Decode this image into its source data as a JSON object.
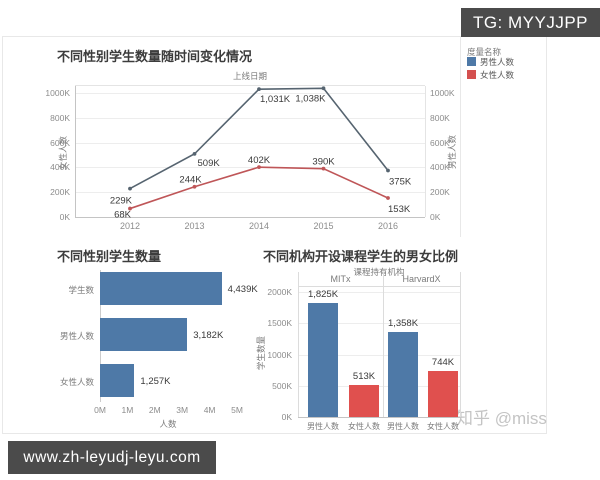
{
  "overlays": {
    "tg_badge": "TG: MYYJJPP",
    "url_badge": "www.zh-leyudj-leyu.com",
    "watermark": "知乎 @miss"
  },
  "legend": {
    "title": "度量名称",
    "items": [
      {
        "label": "男性人数",
        "color": "#4e79a7"
      },
      {
        "label": "女性人数",
        "color": "#d4504f"
      }
    ]
  },
  "chart_data": [
    {
      "type": "line",
      "title": "不同性别学生数量随时间变化情况",
      "top_axis_title": "上线日期",
      "left_axis_label": "女性人数",
      "right_axis_label": "男性人数",
      "x_categories": [
        "2012",
        "2013",
        "2014",
        "2015",
        "2016"
      ],
      "y_ticks": [
        "0K",
        "200K",
        "400K",
        "600K",
        "800K",
        "1000K"
      ],
      "ylim_k": [
        0,
        1000
      ],
      "grid": true,
      "legend_position": "top-right",
      "series": [
        {
          "name": "男性人数",
          "color": "#566470",
          "values_k": [
            229,
            509,
            1031,
            1038,
            375
          ],
          "point_labels": [
            "229K",
            "509K",
            "1,031K",
            "1,038K",
            "375K"
          ]
        },
        {
          "name": "女性人数",
          "color": "#bf5658",
          "values_k": [
            68,
            244,
            402,
            390,
            153
          ],
          "point_labels": [
            "68K",
            "244K",
            "402K",
            "390K",
            "153K"
          ]
        }
      ]
    },
    {
      "type": "bar",
      "title": "不同性别学生数量",
      "orientation": "horizontal",
      "categories": [
        "学生数",
        "男性人数",
        "女性人数"
      ],
      "values_m": [
        4.439,
        3.182,
        1.257
      ],
      "bar_labels": [
        "4,439K",
        "3,182K",
        "1,257K"
      ],
      "x_ticks": [
        "0M",
        "1M",
        "2M",
        "3M",
        "4M",
        "5M"
      ],
      "xlim_m": [
        0,
        5
      ],
      "x_axis_label": "人数",
      "bar_color": "#4e79a7"
    },
    {
      "type": "bar",
      "title": "不同机构开设课程学生的男女比例",
      "orientation": "vertical-grouped",
      "top_axis_title": "课程持有机构",
      "y_axis_label": "学生数量",
      "y_ticks": [
        "0K",
        "500K",
        "1000K",
        "1500K",
        "2000K"
      ],
      "ylim_k": [
        0,
        2000
      ],
      "grid": true,
      "groups": [
        {
          "name": "MITx",
          "bars": [
            {
              "category": "男性人数",
              "value_k": 1825,
              "label": "1,825K",
              "color": "#4e79a7"
            },
            {
              "category": "女性人数",
              "value_k": 513,
              "label": "513K",
              "color": "#e0504e"
            }
          ]
        },
        {
          "name": "HarvardX",
          "bars": [
            {
              "category": "男性人数",
              "value_k": 1358,
              "label": "1,358K",
              "color": "#4e79a7"
            },
            {
              "category": "女性人数",
              "value_k": 744,
              "label": "744K",
              "color": "#e0504e"
            }
          ]
        }
      ]
    }
  ]
}
